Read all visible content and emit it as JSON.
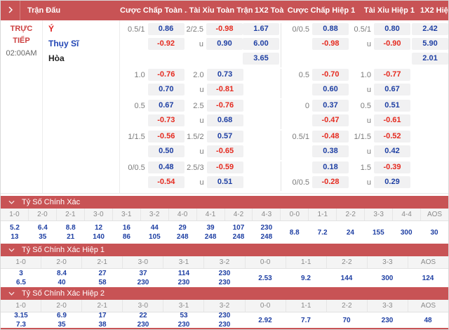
{
  "colors": {
    "bar_red": "#c85355",
    "value_blue": "#1e3fa3",
    "value_red": "#e52a1f",
    "label_gray": "#7a7a7a",
    "box_bg": "#f1f1f2",
    "team_home_red": "#e02222",
    "team_away_blue": "#2246b5",
    "live_red": "#cd4040"
  },
  "header": {
    "columns": [
      "Trận Đấu",
      "Cược Chấp Toàn ...",
      "Tài Xỉu Toàn Trận",
      "1X2 Toà...",
      "Cược Chấp Hiệp 1",
      "Tài Xỉu Hiệp 1",
      "1X2 Hiệ..."
    ]
  },
  "match": {
    "status": "TRỰC TIẾP",
    "time": "02:00AM",
    "teams": [
      "Ý",
      "Thụy Sĩ"
    ],
    "draw_label": "Hòa"
  },
  "odds_blocks": [
    {
      "ft_hc": [
        [
          "0.5/1",
          "0.86"
        ],
        [
          "",
          "-0.92"
        ]
      ],
      "ft_ou": [
        [
          "2/2.5",
          "-0.98"
        ],
        [
          "u",
          "0.90"
        ]
      ],
      "ft_1x2": [
        "1.67",
        "6.00",
        "3.65"
      ],
      "h1_hc": [
        [
          "0/0.5",
          "0.88"
        ],
        [
          "",
          "-0.98"
        ]
      ],
      "h1_ou": [
        [
          "0.5/1",
          "0.80"
        ],
        [
          "u",
          "-0.90"
        ]
      ],
      "h1_1x2": [
        "2.42",
        "5.90",
        "2.01"
      ]
    },
    {
      "ft_hc": [
        [
          "1.0",
          "-0.76"
        ],
        [
          "",
          "0.70"
        ]
      ],
      "ft_ou": [
        [
          "2.0",
          "0.73"
        ],
        [
          "u",
          "-0.81"
        ]
      ],
      "ft_1x2": [],
      "h1_hc": [
        [
          "0.5",
          "-0.70"
        ],
        [
          "",
          "0.60"
        ]
      ],
      "h1_ou": [
        [
          "1.0",
          "-0.77"
        ],
        [
          "u",
          "0.67"
        ]
      ],
      "h1_1x2": []
    },
    {
      "ft_hc": [
        [
          "0.5",
          "0.67"
        ],
        [
          "",
          "-0.73"
        ]
      ],
      "ft_ou": [
        [
          "2.5",
          "-0.76"
        ],
        [
          "u",
          "0.68"
        ]
      ],
      "ft_1x2": [],
      "h1_hc": [
        [
          "0",
          "0.37"
        ],
        [
          "",
          "-0.47"
        ]
      ],
      "h1_ou": [
        [
          "0.5",
          "0.51"
        ],
        [
          "u",
          "-0.61"
        ]
      ],
      "h1_1x2": []
    },
    {
      "ft_hc": [
        [
          "1/1.5",
          "-0.56"
        ],
        [
          "",
          "0.50"
        ]
      ],
      "ft_ou": [
        [
          "1.5/2",
          "0.57"
        ],
        [
          "u",
          "-0.65"
        ]
      ],
      "ft_1x2": [],
      "h1_hc": [
        [
          "0.5/1",
          "-0.48"
        ],
        [
          "",
          "0.38"
        ]
      ],
      "h1_ou": [
        [
          "1/1.5",
          "-0.52"
        ],
        [
          "u",
          "0.42"
        ]
      ],
      "h1_1x2": []
    },
    {
      "ft_hc": [
        [
          "0/0.5",
          "0.48"
        ],
        [
          "",
          "-0.54"
        ]
      ],
      "ft_ou": [
        [
          "2.5/3",
          "-0.59"
        ],
        [
          "u",
          "0.51"
        ]
      ],
      "ft_1x2": [],
      "h1_hc": [
        [
          "",
          "0.18"
        ],
        [
          "0/0.5",
          "-0.28"
        ]
      ],
      "h1_ou": [
        [
          "1.5",
          "-0.39"
        ],
        [
          "u",
          "0.29"
        ]
      ],
      "h1_1x2": []
    }
  ],
  "score_sections": [
    {
      "title": "Tỷ Số Chính Xác",
      "columns": [
        {
          "score": "1-0",
          "odds": [
            "5.2",
            "13"
          ]
        },
        {
          "score": "2-0",
          "odds": [
            "6.4",
            "35"
          ]
        },
        {
          "score": "2-1",
          "odds": [
            "8.8",
            "21"
          ]
        },
        {
          "score": "3-0",
          "odds": [
            "12",
            "140"
          ]
        },
        {
          "score": "3-1",
          "odds": [
            "16",
            "86"
          ]
        },
        {
          "score": "3-2",
          "odds": [
            "44",
            "105"
          ]
        },
        {
          "score": "4-0",
          "odds": [
            "29",
            "248"
          ]
        },
        {
          "score": "4-1",
          "odds": [
            "39",
            "248"
          ]
        },
        {
          "score": "4-2",
          "odds": [
            "107",
            "248"
          ]
        },
        {
          "score": "4-3",
          "odds": [
            "230",
            "248"
          ]
        },
        {
          "score": "0-0",
          "odds": [
            "8.8"
          ]
        },
        {
          "score": "1-1",
          "odds": [
            "7.2"
          ]
        },
        {
          "score": "2-2",
          "odds": [
            "24"
          ]
        },
        {
          "score": "3-3",
          "odds": [
            "155"
          ]
        },
        {
          "score": "4-4",
          "odds": [
            "300"
          ]
        },
        {
          "score": "AOS",
          "odds": [
            "30"
          ]
        }
      ]
    },
    {
      "title": "Tỷ Số Chính Xác Hiệp 1",
      "columns": [
        {
          "score": "1-0",
          "odds": [
            "3",
            "6.5"
          ]
        },
        {
          "score": "2-0",
          "odds": [
            "8.4",
            "40"
          ]
        },
        {
          "score": "2-1",
          "odds": [
            "27",
            "58"
          ]
        },
        {
          "score": "3-0",
          "odds": [
            "37",
            "230"
          ]
        },
        {
          "score": "3-1",
          "odds": [
            "114",
            "230"
          ]
        },
        {
          "score": "3-2",
          "odds": [
            "230",
            "230"
          ]
        },
        {
          "score": "0-0",
          "odds": [
            "2.53"
          ]
        },
        {
          "score": "1-1",
          "odds": [
            "9.2"
          ]
        },
        {
          "score": "2-2",
          "odds": [
            "144"
          ]
        },
        {
          "score": "3-3",
          "odds": [
            "300"
          ]
        },
        {
          "score": "AOS",
          "odds": [
            "124"
          ]
        }
      ]
    },
    {
      "title": "Tỷ Số Chính Xác Hiệp 2",
      "columns": [
        {
          "score": "1-0",
          "odds": [
            "3.15",
            "7.3"
          ]
        },
        {
          "score": "2-0",
          "odds": [
            "6.9",
            "35"
          ]
        },
        {
          "score": "2-1",
          "odds": [
            "17",
            "38"
          ]
        },
        {
          "score": "3-0",
          "odds": [
            "22",
            "230"
          ]
        },
        {
          "score": "3-1",
          "odds": [
            "53",
            "230"
          ]
        },
        {
          "score": "3-2",
          "odds": [
            "230",
            "230"
          ]
        },
        {
          "score": "0-0",
          "odds": [
            "2.92"
          ]
        },
        {
          "score": "1-1",
          "odds": [
            "7.7"
          ]
        },
        {
          "score": "2-2",
          "odds": [
            "70"
          ]
        },
        {
          "score": "3-3",
          "odds": [
            "230"
          ]
        },
        {
          "score": "AOS",
          "odds": [
            "48"
          ]
        }
      ]
    }
  ]
}
